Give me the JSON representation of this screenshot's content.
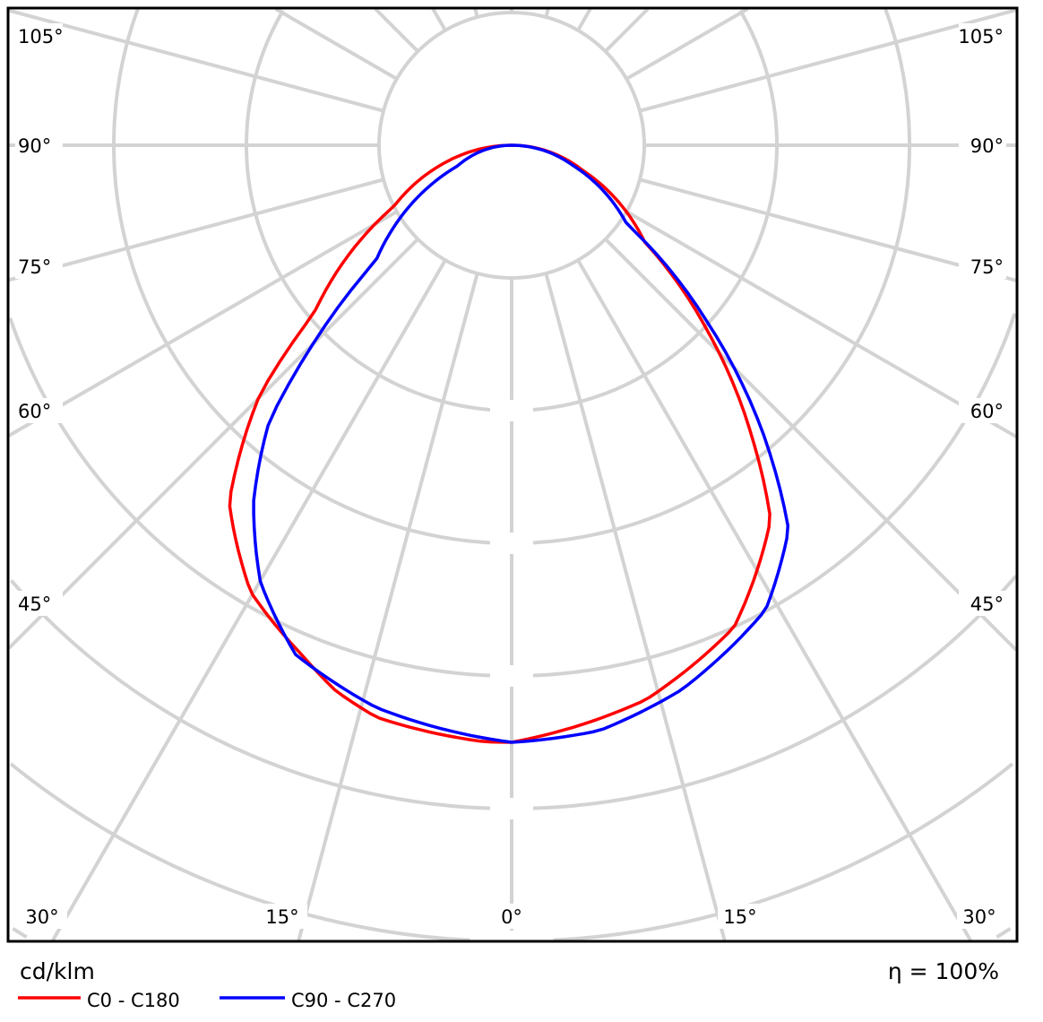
{
  "chart_data": {
    "type": "polar",
    "title": "",
    "unit_label": "cd/klm",
    "efficiency_label": "η = 100%",
    "angle_step_deg": 15,
    "grid": true,
    "grid_color": "#d3d3d3",
    "angle_labels": {
      "left": [
        "105°",
        "90°",
        "75°",
        "60°",
        "45°"
      ],
      "right": [
        "105°",
        "90°",
        "75°",
        "60°",
        "45°"
      ],
      "bottom": [
        "30°",
        "15°",
        "0°",
        "15°",
        "30°"
      ]
    },
    "legend_placement": "bottom-left",
    "series": [
      {
        "name": "C0 - C180",
        "color": "#ff0000",
        "points": [
          [
            -90,
            0
          ],
          [
            -74,
            0.57
          ],
          [
            -62.6,
            1.0
          ],
          [
            -49.6,
            1.96
          ],
          [
            -45.3,
            2.67
          ],
          [
            -38.4,
            3.43
          ],
          [
            -30.3,
            3.9
          ],
          [
            -22.2,
            4.16
          ],
          [
            -17.9,
            4.32
          ],
          [
            -13.3,
            4.43
          ],
          [
            -2.7,
            4.5
          ],
          [
            0,
            4.5
          ],
          [
            13.6,
            4.3
          ],
          [
            24.8,
            4.0
          ],
          [
            34.7,
            3.43
          ],
          [
            39.4,
            2.86
          ],
          [
            46.5,
            2.04
          ],
          [
            54,
            1.24
          ],
          [
            70.5,
            0.57
          ],
          [
            90,
            0
          ]
        ]
      },
      {
        "name": "C90 - C270",
        "color": "#0000ff",
        "points": [
          [
            -90,
            0
          ],
          [
            -69,
            0.44
          ],
          [
            -49.7,
            1.34
          ],
          [
            -44.7,
            2.17
          ],
          [
            -41.3,
            2.77
          ],
          [
            -35.9,
            3.32
          ],
          [
            -29.9,
            3.8
          ],
          [
            -23,
            4.17
          ],
          [
            -13.5,
            4.36
          ],
          [
            0,
            4.5
          ],
          [
            8.6,
            4.46
          ],
          [
            17.3,
            4.3
          ],
          [
            28.7,
            3.99
          ],
          [
            35.8,
            3.57
          ],
          [
            41.3,
            2.86
          ],
          [
            47.9,
            1.99
          ],
          [
            55.7,
            1.05
          ],
          [
            71.6,
            0.49
          ],
          [
            90,
            0
          ]
        ]
      }
    ]
  }
}
